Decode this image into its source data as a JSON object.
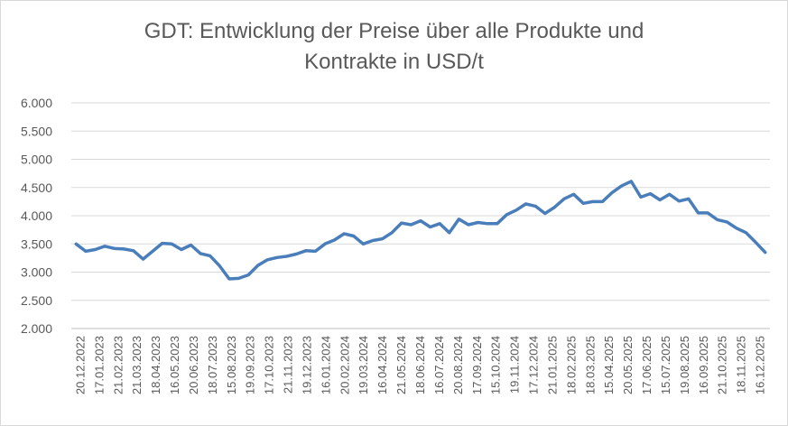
{
  "chart_data": {
    "type": "line",
    "title_line1": "GDT: Entwicklung der Preise über alle Produkte und",
    "title_line2": "Kontrakte in USD/t",
    "xlabel": "",
    "ylabel": "",
    "ylim": [
      2000,
      6000
    ],
    "yticks": [
      "2.000",
      "2.500",
      "3.000",
      "3.500",
      "4.000",
      "4.500",
      "5.000",
      "5.500",
      "6.000"
    ],
    "grid": true,
    "legend": "none",
    "line_color": "#4a7ebb",
    "xtick_labels": [
      "20.12.2022",
      "17.01.2023",
      "21.02.2023",
      "21.03.2023",
      "18.04.2023",
      "16.05.2023",
      "20.06.2023",
      "18.07.2023",
      "15.08.2023",
      "19.09.2023",
      "17.10.2023",
      "21.11.2023",
      "19.12.2023",
      "16.01.2024",
      "20.02.2024",
      "19.03.2024",
      "16.04.2024",
      "21.05.2024",
      "18.06.2024",
      "16.07.2024",
      "20.08.2024",
      "17.09.2024",
      "15.10.2024",
      "19.11.2024",
      "17.12.2024",
      "21.01.2025",
      "18.02.2025",
      "18.03.2025",
      "15.04.2025",
      "20.05.2025",
      "17.06.2025",
      "15.07.2025",
      "19.08.2025",
      "16.09.2025",
      "21.10.2025",
      "18.11.2025",
      "16.12.2025"
    ],
    "values": [
      3500,
      3370,
      3400,
      3460,
      3420,
      3410,
      3380,
      3230,
      3370,
      3510,
      3500,
      3400,
      3480,
      3330,
      3290,
      3110,
      2880,
      2890,
      2950,
      3120,
      3220,
      3260,
      3280,
      3320,
      3380,
      3370,
      3500,
      3570,
      3680,
      3640,
      3500,
      3560,
      3590,
      3700,
      3870,
      3840,
      3910,
      3800,
      3860,
      3700,
      3940,
      3840,
      3880,
      3860,
      3860,
      4020,
      4100,
      4210,
      4170,
      4040,
      4150,
      4300,
      4380,
      4220,
      4250,
      4250,
      4410,
      4530,
      4610,
      4330,
      4390,
      4280,
      4380,
      4260,
      4300,
      4050,
      4050,
      3930,
      3890,
      3780,
      3700,
      3530,
      3350
    ]
  }
}
